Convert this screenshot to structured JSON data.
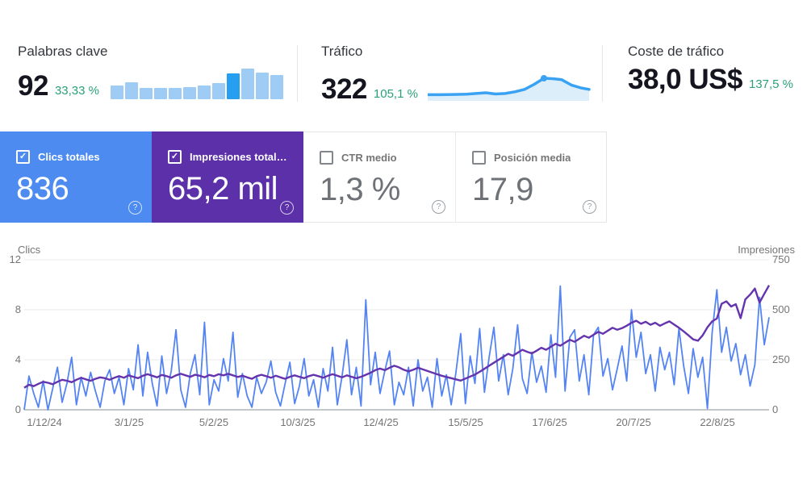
{
  "summary_cards": {
    "keywords": {
      "title": "Palabras clave",
      "value": "92",
      "change": "33,33 %",
      "change_color": "#2aa179",
      "sparkline": {
        "type": "bar",
        "values": [
          0.45,
          0.55,
          0.38,
          0.37,
          0.37,
          0.4,
          0.44,
          0.52,
          0.85,
          1.0,
          0.88,
          0.78
        ],
        "highlight_index": 8,
        "color": "#9fccf5",
        "highlight_color": "#279ff0"
      }
    },
    "traffic": {
      "title": "Tráfico",
      "value": "322",
      "change": "105,1 %",
      "change_color": "#2aa179",
      "sparkline": {
        "type": "area",
        "points": [
          [
            0,
            0.12
          ],
          [
            8,
            0.12
          ],
          [
            16,
            0.13
          ],
          [
            24,
            0.14
          ],
          [
            30,
            0.17
          ],
          [
            36,
            0.2
          ],
          [
            42,
            0.15
          ],
          [
            48,
            0.17
          ],
          [
            54,
            0.24
          ],
          [
            60,
            0.34
          ],
          [
            66,
            0.55
          ],
          [
            72,
            0.8
          ],
          [
            78,
            0.78
          ],
          [
            83,
            0.74
          ],
          [
            89,
            0.52
          ],
          [
            95,
            0.4
          ],
          [
            100,
            0.34
          ]
        ],
        "marker_index": 11,
        "color": "#3aa2f2",
        "fill": "#ddeefb"
      }
    },
    "traffic_cost": {
      "title": "Coste de tráfico",
      "value": "38,0 US$",
      "change": "137,5 %",
      "change_color": "#2aa179"
    }
  },
  "metric_tiles": [
    {
      "label": "Clics totales",
      "value": "836",
      "checked": true,
      "bg": "#4d8bf0",
      "help_icon": "?"
    },
    {
      "label": "Impresiones total…",
      "value": "65,2 mil",
      "checked": true,
      "bg": "#5b30a8",
      "help_icon": "?"
    },
    {
      "label": "CTR medio",
      "value": "1,3 %",
      "checked": false,
      "bg": "#ffffff",
      "help_icon": "?"
    },
    {
      "label": "Posición media",
      "value": "17,9",
      "checked": false,
      "bg": "#ffffff",
      "help_icon": "?"
    }
  ],
  "ui": {
    "check_glyph": "✓",
    "help_glyph": "?"
  },
  "chart_data": {
    "type": "line",
    "grid": true,
    "left_axis": {
      "label": "Clics",
      "range": [
        0,
        12
      ],
      "ticks": [
        12,
        8,
        4,
        0
      ]
    },
    "right_axis": {
      "label": "Impresiones",
      "range": [
        0,
        750
      ],
      "ticks": [
        750,
        500,
        250,
        0
      ]
    },
    "x_ticks": [
      "1/12/24",
      "3/1/25",
      "5/2/25",
      "10/3/25",
      "12/4/25",
      "15/5/25",
      "17/6/25",
      "20/7/25",
      "22/8/25"
    ],
    "series": [
      {
        "name": "Clics",
        "axis": "left",
        "color": "#5484f3",
        "values": [
          0,
          2.7,
          1.3,
          0.2,
          2.3,
          0,
          1.7,
          3.4,
          0.6,
          2.1,
          4.2,
          0.4,
          2.6,
          1.1,
          3.0,
          1.5,
          0.2,
          2.3,
          3.2,
          1.3,
          2.6,
          0.4,
          3.3,
          1.6,
          5.2,
          1.1,
          4.6,
          2.1,
          0.3,
          4.3,
          1.3,
          3.1,
          6.4,
          1.6,
          0.2,
          2.9,
          4.4,
          1.2,
          7.0,
          0.4,
          2.4,
          1.5,
          4.1,
          2.3,
          6.2,
          1.0,
          2.9,
          1.1,
          0.2,
          2.6,
          1.3,
          2.2,
          3.9,
          1.4,
          0.3,
          2.1,
          3.8,
          0.5,
          1.9,
          4.1,
          1.1,
          2.4,
          0.2,
          3.3,
          1.5,
          5.0,
          0.4,
          2.7,
          5.6,
          1.2,
          3.4,
          0.3,
          8.8,
          2.0,
          4.6,
          1.3,
          3.1,
          4.7,
          0.4,
          2.2,
          1.2,
          3.4,
          0.3,
          4.0,
          1.5,
          2.6,
          0.2,
          4.1,
          1.1,
          2.8,
          0.4,
          3.0,
          6.1,
          0.5,
          4.3,
          2.1,
          6.5,
          1.4,
          4.2,
          6.6,
          2.3,
          4.4,
          1.2,
          3.3,
          6.8,
          2.5,
          1.3,
          4.6,
          2.2,
          3.5,
          1.4,
          6.0,
          2.6,
          9.9,
          1.5,
          5.8,
          6.4,
          2.3,
          4.4,
          1.2,
          6.0,
          6.6,
          2.7,
          4.1,
          1.6,
          3.3,
          5.1,
          2.3,
          8.0,
          4.2,
          6.2,
          2.9,
          4.4,
          1.5,
          5.0,
          3.2,
          4.6,
          2.0,
          6.5,
          3.5,
          1.3,
          4.9,
          2.6,
          4.2,
          0.1,
          6.2,
          9.6,
          4.6,
          6.6,
          3.9,
          5.3,
          2.8,
          4.4,
          1.9,
          3.6,
          9.0,
          5.2,
          7.4
        ]
      },
      {
        "name": "Impresiones",
        "axis": "right",
        "color": "#6434ae",
        "values": [
          110,
          125,
          118,
          130,
          140,
          135,
          128,
          140,
          150,
          145,
          138,
          150,
          160,
          152,
          145,
          155,
          162,
          158,
          150,
          160,
          168,
          160,
          172,
          165,
          158,
          170,
          178,
          170,
          162,
          174,
          168,
          160,
          172,
          180,
          172,
          165,
          175,
          170,
          162,
          174,
          168,
          178,
          172,
          180,
          172,
          164,
          170,
          162,
          155,
          168,
          175,
          168,
          160,
          170,
          162,
          155,
          165,
          172,
          165,
          158,
          168,
          175,
          168,
          160,
          170,
          178,
          170,
          162,
          172,
          165,
          158,
          165,
          175,
          185,
          198,
          206,
          198,
          210,
          220,
          212,
          200,
          192,
          200,
          210,
          202,
          194,
          186,
          178,
          170,
          164,
          158,
          152,
          146,
          156,
          166,
          176,
          190,
          205,
          220,
          235,
          250,
          265,
          280,
          270,
          285,
          300,
          290,
          282,
          295,
          310,
          300,
          315,
          330,
          320,
          335,
          350,
          340,
          355,
          370,
          360,
          375,
          390,
          380,
          395,
          410,
          400,
          408,
          420,
          435,
          445,
          430,
          440,
          425,
          435,
          420,
          432,
          442,
          426,
          410,
          392,
          372,
          352,
          345,
          372,
          412,
          442,
          456,
          530,
          542,
          516,
          528,
          458,
          552,
          576,
          606,
          536,
          580,
          622
        ]
      }
    ]
  }
}
